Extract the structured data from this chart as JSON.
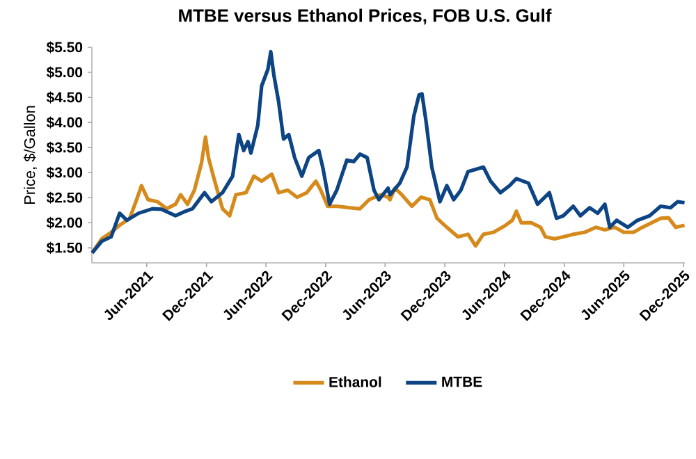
{
  "chart_data": {
    "type": "line",
    "title": "MTBE versus Ethanol Prices, FOB U.S. Gulf",
    "ylabel": "Price, $/Gallon",
    "xlim": [
      "2020-12-15",
      "2025-12-05"
    ],
    "ylim": [
      1.2,
      5.5
    ],
    "xticks": [
      {
        "value": "2021-06-01",
        "label": "Jun-2021"
      },
      {
        "value": "2021-12-01",
        "label": "Dec-2021"
      },
      {
        "value": "2022-06-01",
        "label": "Jun-2022"
      },
      {
        "value": "2022-12-01",
        "label": "Dec-2022"
      },
      {
        "value": "2023-06-01",
        "label": "Jun-2023"
      },
      {
        "value": "2023-12-01",
        "label": "Dec-2023"
      },
      {
        "value": "2024-06-01",
        "label": "Jun-2024"
      },
      {
        "value": "2024-12-01",
        "label": "Dec-2024"
      },
      {
        "value": "2025-06-01",
        "label": "Jun-2025"
      },
      {
        "value": "2025-12-01",
        "label": "Dec-2025"
      }
    ],
    "yticks": [
      {
        "value": 1.5,
        "label": "$1.50"
      },
      {
        "value": 2.0,
        "label": "$2.00"
      },
      {
        "value": 2.5,
        "label": "$2.50"
      },
      {
        "value": 3.0,
        "label": "$3.00"
      },
      {
        "value": 3.5,
        "label": "$3.50"
      },
      {
        "value": 4.0,
        "label": "$4.00"
      },
      {
        "value": 4.5,
        "label": "$4.50"
      },
      {
        "value": 5.0,
        "label": "$5.00"
      },
      {
        "value": 5.5,
        "label": "$5.50"
      }
    ],
    "grid": false,
    "legend": "bottom",
    "marker": "none",
    "line_style": "solid",
    "series": [
      {
        "name": "Ethanol",
        "color": "#d68a1c",
        "x": [
          "2020-12-16",
          "2021-01-14",
          "2021-02-12",
          "2021-03-10",
          "2021-04-10",
          "2021-05-01",
          "2021-05-16",
          "2021-06-05",
          "2021-07-04",
          "2021-08-01",
          "2021-08-28",
          "2021-09-13",
          "2021-10-04",
          "2021-10-25",
          "2021-11-16",
          "2021-11-28",
          "2021-12-07",
          "2021-12-22",
          "2022-01-07",
          "2022-01-19",
          "2022-02-10",
          "2022-03-01",
          "2022-04-01",
          "2022-04-25",
          "2022-05-19",
          "2022-06-19",
          "2022-07-10",
          "2022-08-07",
          "2022-09-04",
          "2022-10-04",
          "2022-11-01",
          "2022-11-16",
          "2022-12-07",
          "2023-01-04",
          "2023-02-10",
          "2023-03-16",
          "2023-04-13",
          "2023-05-19",
          "2023-06-10",
          "2023-06-16",
          "2023-07-01",
          "2023-07-22",
          "2023-08-22",
          "2023-09-19",
          "2023-10-16",
          "2023-11-07",
          "2023-12-07",
          "2024-01-10",
          "2024-02-10",
          "2024-03-04",
          "2024-03-28",
          "2024-04-28",
          "2024-06-04",
          "2024-06-25",
          "2024-07-07",
          "2024-07-22",
          "2024-08-22",
          "2024-09-19",
          "2024-10-04",
          "2024-11-01",
          "2024-11-28",
          "2024-12-28",
          "2025-02-01",
          "2025-03-07",
          "2025-04-04",
          "2025-05-04",
          "2025-06-01",
          "2025-07-01",
          "2025-07-28",
          "2025-08-25",
          "2025-09-22",
          "2025-10-16",
          "2025-11-07",
          "2025-12-04"
        ],
        "values": [
          1.4,
          1.68,
          1.81,
          1.95,
          2.09,
          2.46,
          2.74,
          2.46,
          2.42,
          2.28,
          2.37,
          2.56,
          2.37,
          2.65,
          3.2,
          3.71,
          3.3,
          2.93,
          2.56,
          2.28,
          2.14,
          2.56,
          2.6,
          2.93,
          2.83,
          2.97,
          2.6,
          2.65,
          2.51,
          2.6,
          2.83,
          2.65,
          2.33,
          2.33,
          2.3,
          2.28,
          2.46,
          2.56,
          2.51,
          2.46,
          2.69,
          2.56,
          2.33,
          2.51,
          2.46,
          2.09,
          1.91,
          1.72,
          1.77,
          1.54,
          1.77,
          1.81,
          1.95,
          2.05,
          2.23,
          2.0,
          2.0,
          1.91,
          1.72,
          1.68,
          1.72,
          1.77,
          1.81,
          1.91,
          1.86,
          1.91,
          1.81,
          1.81,
          1.91,
          2.0,
          2.09,
          2.1,
          1.91,
          1.95
        ]
      },
      {
        "name": "MTBE",
        "color": "#0d4484",
        "x": [
          "2020-12-16",
          "2021-01-14",
          "2021-02-12",
          "2021-03-10",
          "2021-04-01",
          "2021-05-07",
          "2021-06-19",
          "2021-07-16",
          "2021-08-28",
          "2021-09-28",
          "2021-10-19",
          "2021-11-25",
          "2021-12-16",
          "2022-01-19",
          "2022-02-19",
          "2022-03-10",
          "2022-03-25",
          "2022-04-07",
          "2022-04-16",
          "2022-05-07",
          "2022-05-19",
          "2022-06-07",
          "2022-06-16",
          "2022-06-25",
          "2022-07-10",
          "2022-07-25",
          "2022-08-10",
          "2022-08-28",
          "2022-09-19",
          "2022-10-10",
          "2022-11-10",
          "2022-11-22",
          "2022-12-13",
          "2023-01-04",
          "2023-02-04",
          "2023-02-25",
          "2023-03-16",
          "2023-04-07",
          "2023-04-28",
          "2023-05-13",
          "2023-06-10",
          "2023-06-16",
          "2023-07-16",
          "2023-08-07",
          "2023-08-28",
          "2023-09-13",
          "2023-09-22",
          "2023-10-04",
          "2023-10-22",
          "2023-11-16",
          "2023-12-07",
          "2023-12-28",
          "2024-01-19",
          "2024-02-10",
          "2024-03-01",
          "2024-03-28",
          "2024-04-19",
          "2024-05-19",
          "2024-06-16",
          "2024-07-07",
          "2024-08-13",
          "2024-09-10",
          "2024-10-16",
          "2024-11-07",
          "2024-11-28",
          "2024-12-28",
          "2025-01-19",
          "2025-02-16",
          "2025-03-13",
          "2025-04-04",
          "2025-04-19",
          "2025-05-10",
          "2025-06-13",
          "2025-07-13",
          "2025-08-19",
          "2025-09-22",
          "2025-10-22",
          "2025-11-13",
          "2025-12-04"
        ],
        "values": [
          1.4,
          1.63,
          1.72,
          2.19,
          2.05,
          2.19,
          2.28,
          2.27,
          2.14,
          2.23,
          2.28,
          2.6,
          2.42,
          2.6,
          2.93,
          3.76,
          3.44,
          3.62,
          3.39,
          3.94,
          4.73,
          5.06,
          5.41,
          4.96,
          4.41,
          3.67,
          3.76,
          3.3,
          2.93,
          3.3,
          3.44,
          3.11,
          2.37,
          2.65,
          3.25,
          3.22,
          3.37,
          3.3,
          2.65,
          2.46,
          2.69,
          2.56,
          2.79,
          3.11,
          4.13,
          4.55,
          4.57,
          4.04,
          3.11,
          2.42,
          2.74,
          2.46,
          2.65,
          3.02,
          3.06,
          3.11,
          2.83,
          2.6,
          2.74,
          2.88,
          2.79,
          2.37,
          2.6,
          2.09,
          2.14,
          2.33,
          2.14,
          2.3,
          2.19,
          2.37,
          1.91,
          2.05,
          1.91,
          2.05,
          2.14,
          2.33,
          2.3,
          2.42,
          2.4
        ]
      }
    ]
  }
}
